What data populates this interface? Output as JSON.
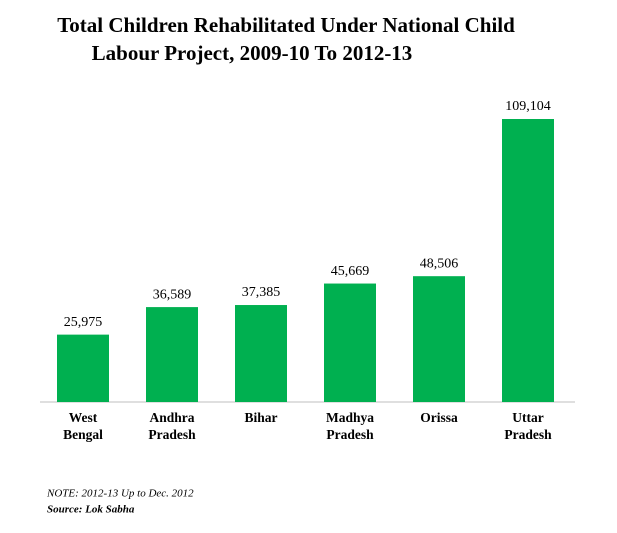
{
  "chart_data": {
    "type": "bar",
    "title": [
      "Total Children Rehabilitated Under National Child",
      "Labour Project, 2009-10 To 2012-13"
    ],
    "categories": [
      "West Bengal",
      "Andhra Pradesh",
      "Bihar",
      "Madhya Pradesh",
      "Orissa",
      "Uttar Pradesh"
    ],
    "values": [
      25975,
      36589,
      37385,
      45669,
      48506,
      109104
    ],
    "value_labels": [
      "25,975",
      "36,589",
      "37,385",
      "45,669",
      "48,506",
      "109,104"
    ],
    "color": "#00b050",
    "notes": [
      "NOTE: 2012-13 Up to Dec. 2012",
      "Source: Lok Sabha"
    ]
  }
}
